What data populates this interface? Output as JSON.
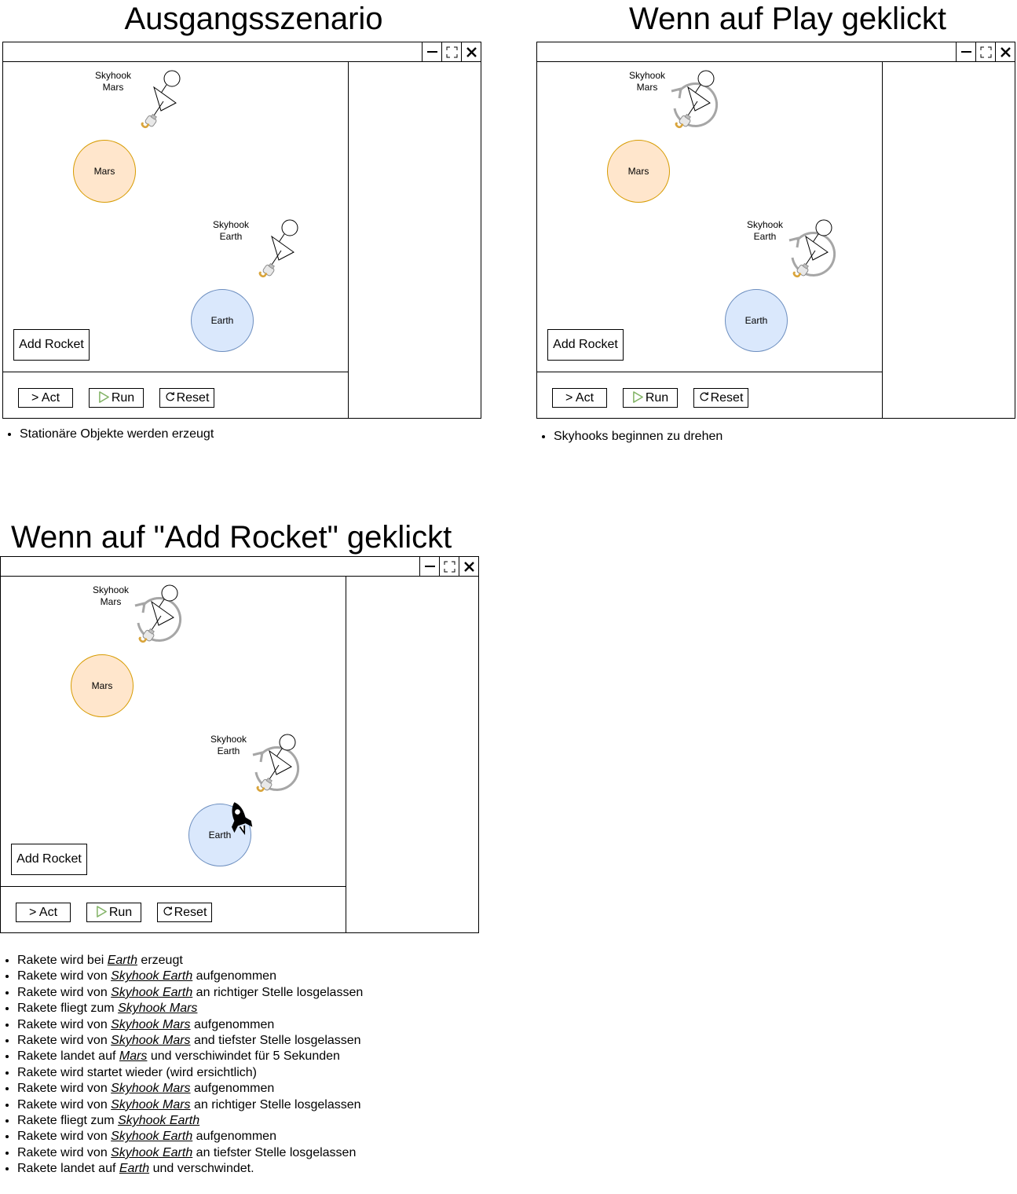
{
  "panels": [
    {
      "title": "Ausgangsszenario",
      "buttons": {
        "act": "> Act",
        "run": "Run",
        "reset": "Reset",
        "add_rocket": "Add Rocket"
      },
      "planets": {
        "mars": "Mars",
        "earth": "Earth"
      },
      "skyhooks": {
        "mars": "Skyhook\nMars",
        "earth": "Skyhook\nEarth"
      },
      "rotating": false,
      "rocket": false,
      "notes": [
        [
          {
            "t": "Stationäre Objekte werden erzeugt"
          }
        ]
      ]
    },
    {
      "title": "Wenn auf Play geklickt",
      "buttons": {
        "act": "> Act",
        "run": "Run",
        "reset": "Reset",
        "add_rocket": "Add Rocket"
      },
      "planets": {
        "mars": "Mars",
        "earth": "Earth"
      },
      "skyhooks": {
        "mars": "Skyhook\nMars",
        "earth": "Skyhook\nEarth"
      },
      "rotating": true,
      "rocket": false,
      "notes": [
        [
          {
            "t": "Skyhooks beginnen zu drehen"
          }
        ]
      ]
    },
    {
      "title": "Wenn auf \"Add Rocket\" geklickt",
      "buttons": {
        "act": "> Act",
        "run": "Run",
        "reset": "Reset",
        "add_rocket": "Add Rocket"
      },
      "planets": {
        "mars": "Mars",
        "earth": "Earth"
      },
      "skyhooks": {
        "mars": "Skyhook\nMars",
        "earth": "Skyhook\nEarth"
      },
      "rotating": true,
      "rocket": true,
      "notes": [
        [
          {
            "t": "Rakete wird bei "
          },
          {
            "t": "Earth",
            "ref": true
          },
          {
            "t": " erzeugt"
          }
        ],
        [
          {
            "t": "Rakete wird von "
          },
          {
            "t": "Skyhook Earth",
            "ref": true
          },
          {
            "t": " aufgenommen"
          }
        ],
        [
          {
            "t": "Rakete wird von "
          },
          {
            "t": "Skyhook Earth",
            "ref": true
          },
          {
            "t": " an richtiger Stelle losgelassen"
          }
        ],
        [
          {
            "t": "Rakete fliegt zum "
          },
          {
            "t": "Skyhook Mars",
            "ref": true
          }
        ],
        [
          {
            "t": "Rakete wird von "
          },
          {
            "t": "Skyhook Mars",
            "ref": true
          },
          {
            "t": " aufgenommen"
          }
        ],
        [
          {
            "t": "Rakete wird von "
          },
          {
            "t": "Skyhook Mars",
            "ref": true
          },
          {
            "t": " and tiefster Stelle losgelassen"
          }
        ],
        [
          {
            "t": "Rakete landet auf "
          },
          {
            "t": "Mars",
            "ref": true
          },
          {
            "t": " und verschiwindet für 5 Sekunden"
          }
        ],
        [
          {
            "t": "Rakete wird startet wieder (wird ersichtlich)"
          }
        ],
        [
          {
            "t": "Rakete wird von "
          },
          {
            "t": "Skyhook Mars",
            "ref": true
          },
          {
            "t": " aufgenommen"
          }
        ],
        [
          {
            "t": "Rakete wird von "
          },
          {
            "t": "Skyhook Mars",
            "ref": true
          },
          {
            "t": " an richtiger Stelle losgelassen"
          }
        ],
        [
          {
            "t": "Rakete fliegt zum "
          },
          {
            "t": "Skyhook Earth",
            "ref": true
          }
        ],
        [
          {
            "t": "Rakete wird von "
          },
          {
            "t": "Skyhook Earth",
            "ref": true
          },
          {
            "t": " aufgenommen"
          }
        ],
        [
          {
            "t": "Rakete wird von "
          },
          {
            "t": "Skyhook Earth",
            "ref": true
          },
          {
            "t": " an tiefster Stelle losgelassen"
          }
        ],
        [
          {
            "t": "Rakete landet auf "
          },
          {
            "t": "Earth",
            "ref": true
          },
          {
            "t": " und verschwindet."
          }
        ]
      ]
    }
  ],
  "colors": {
    "mars_fill": "#ffe6cc",
    "mars_stroke": "#d79b00",
    "earth_fill": "#dae8fc",
    "earth_stroke": "#6c8ebf",
    "rotation_arrow": "#a6a6a6",
    "run_icon": "#82b366",
    "hook_gold": "#d9a43a"
  },
  "icons": {
    "minimize": "minimize-icon",
    "maximize": "maximize-icon",
    "close": "close-icon",
    "run": "play-icon",
    "reset": "reset-icon",
    "rotation": "rotation-arrow-icon",
    "rocket": "rocket-icon",
    "hook": "hook-icon"
  }
}
